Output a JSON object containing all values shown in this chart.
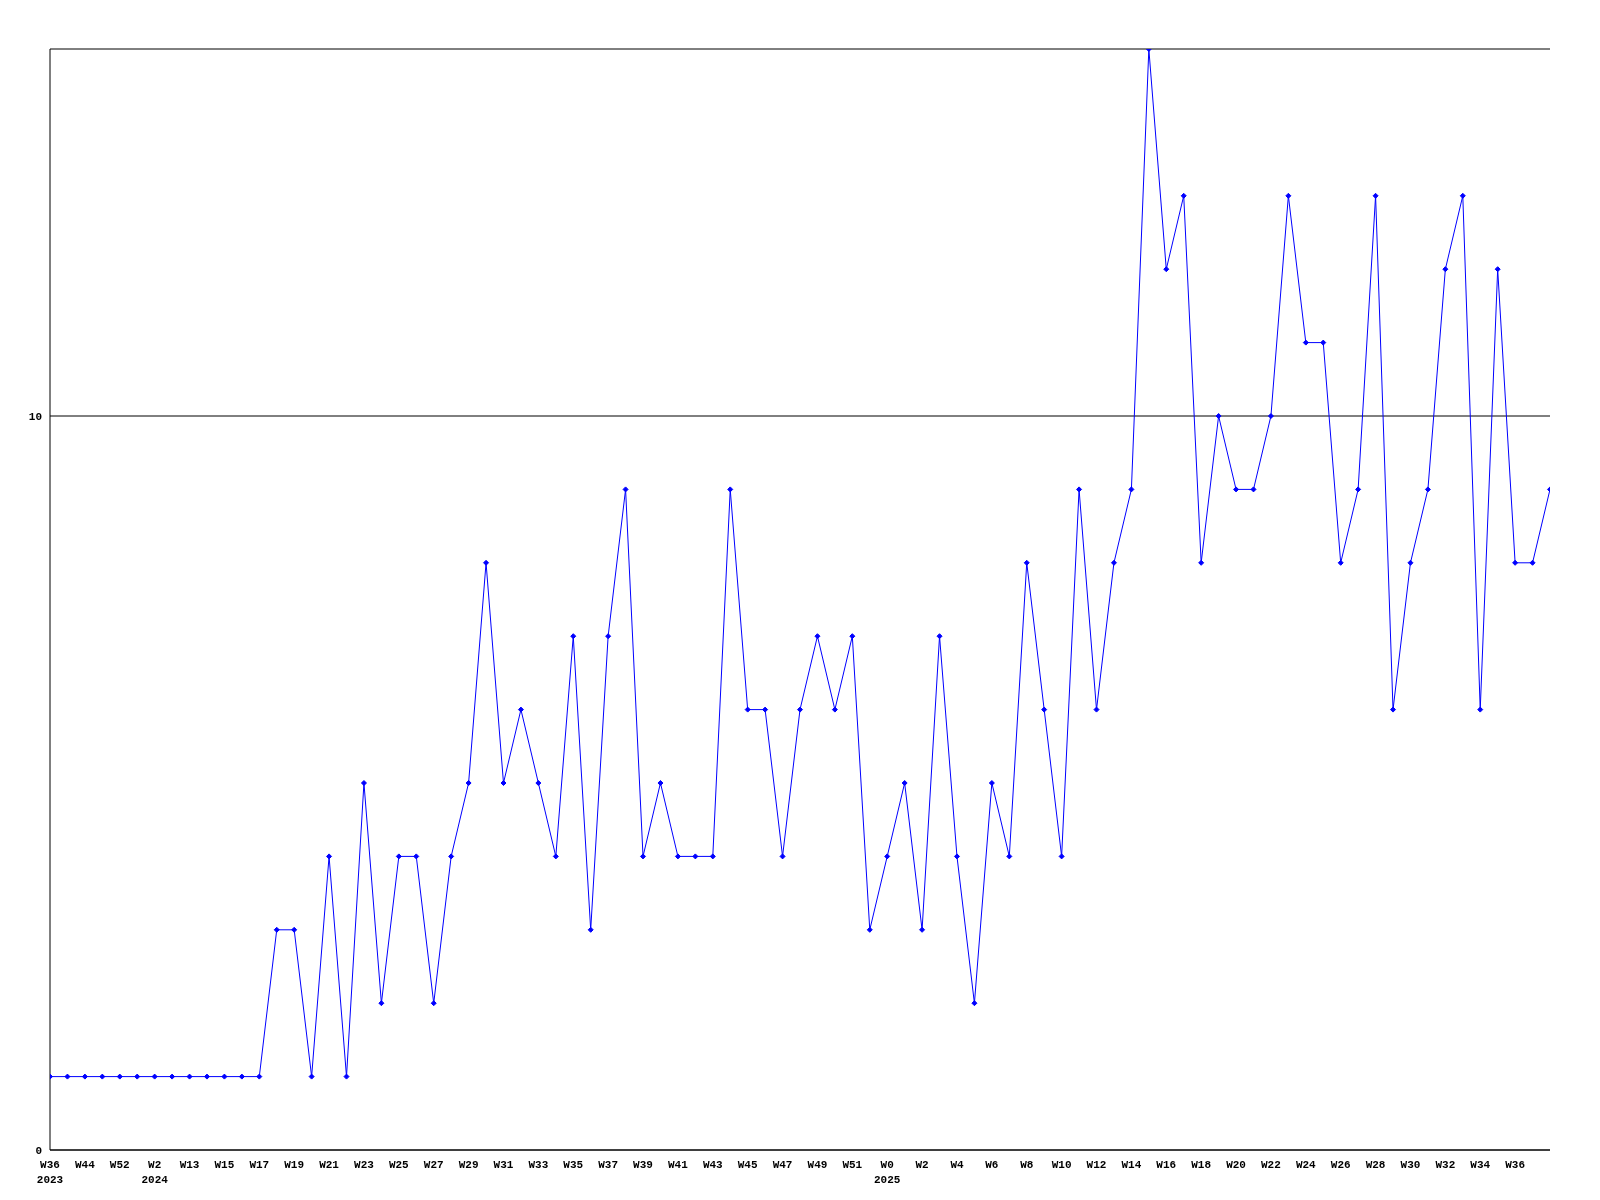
{
  "chart_data": {
    "type": "line",
    "categories": [
      "W36\n2023",
      null,
      "W44",
      null,
      "W52",
      null,
      "W2\n2024",
      null,
      "W13",
      null,
      "W15",
      null,
      "W17",
      null,
      "W19",
      null,
      "W21",
      null,
      "W23",
      null,
      "W25",
      null,
      "W27",
      null,
      "W29",
      null,
      "W31",
      null,
      "W33",
      null,
      "W35",
      null,
      "W37",
      null,
      "W39",
      null,
      "W41",
      null,
      "W43",
      null,
      "W45",
      null,
      "W47",
      null,
      "W49",
      null,
      "W51",
      null,
      "W0\n2025",
      null,
      "W2",
      null,
      "W4",
      null,
      "W6",
      null,
      "W8",
      null,
      "W10",
      null,
      "W12",
      null,
      "W14",
      null,
      "W16",
      null,
      "W18",
      null,
      "W20",
      null,
      "W22",
      null,
      "W24",
      null,
      "W26",
      null,
      "W28",
      null,
      "W30",
      null,
      "W32",
      null,
      "W34",
      null,
      "W36",
      null,
      null
    ],
    "series": [
      {
        "color": "#0000ff",
        "values": [
          1,
          1,
          1,
          1,
          1,
          1,
          1,
          1,
          1,
          1,
          1,
          1,
          1,
          3,
          3,
          1,
          4,
          1,
          5,
          2,
          4,
          4,
          2,
          4,
          5,
          8,
          5,
          6,
          5,
          4,
          7,
          3,
          7,
          9,
          4,
          5,
          4,
          4,
          4,
          9,
          6,
          6,
          4,
          6,
          7,
          6,
          7,
          3,
          4,
          5,
          3,
          7,
          4,
          2,
          5,
          4,
          8,
          6,
          4,
          9,
          6,
          8,
          9,
          15,
          12,
          13,
          8,
          10,
          9,
          9,
          10,
          13,
          11,
          11,
          8,
          9,
          13,
          6,
          8,
          9,
          12,
          13,
          6,
          12,
          8,
          8,
          9
        ]
      }
    ],
    "ylim": [
      0,
      15
    ],
    "yticks": [
      0,
      10
    ],
    "grid": "y",
    "marker": "diamond",
    "line_style": "solid",
    "legend": false
  }
}
